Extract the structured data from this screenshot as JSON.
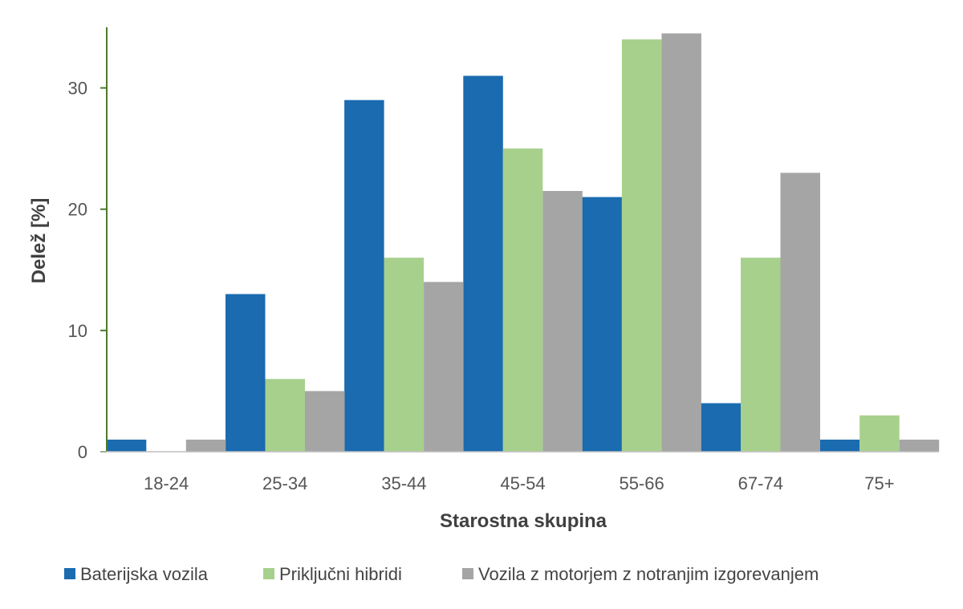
{
  "chart_data": {
    "type": "bar",
    "title": "",
    "xlabel": "Starostna skupina",
    "ylabel": "Delež [%]",
    "categories": [
      "18-24",
      "25-34",
      "35-44",
      "45-54",
      "55-66",
      "67-74",
      "75+"
    ],
    "yticks": [
      "0",
      "10",
      "20",
      "30"
    ],
    "ylim": [
      0,
      35
    ],
    "grid": false,
    "legend_position": "bottom",
    "series": [
      {
        "name": "Baterijska vozila",
        "color": "#1A6BB0",
        "values": [
          1,
          13,
          29,
          31,
          21,
          4,
          1
        ]
      },
      {
        "name": "Priključni hibridi",
        "color": "#A7D08C",
        "values": [
          0,
          6,
          16,
          25,
          34,
          16,
          3
        ]
      },
      {
        "name": "Vozila z motorjem z notranjim izgorevanjem",
        "color": "#A5A5A5",
        "values": [
          1,
          5,
          14,
          21.5,
          34.5,
          23,
          1
        ]
      }
    ],
    "axis_color": "#4E7A2C"
  }
}
